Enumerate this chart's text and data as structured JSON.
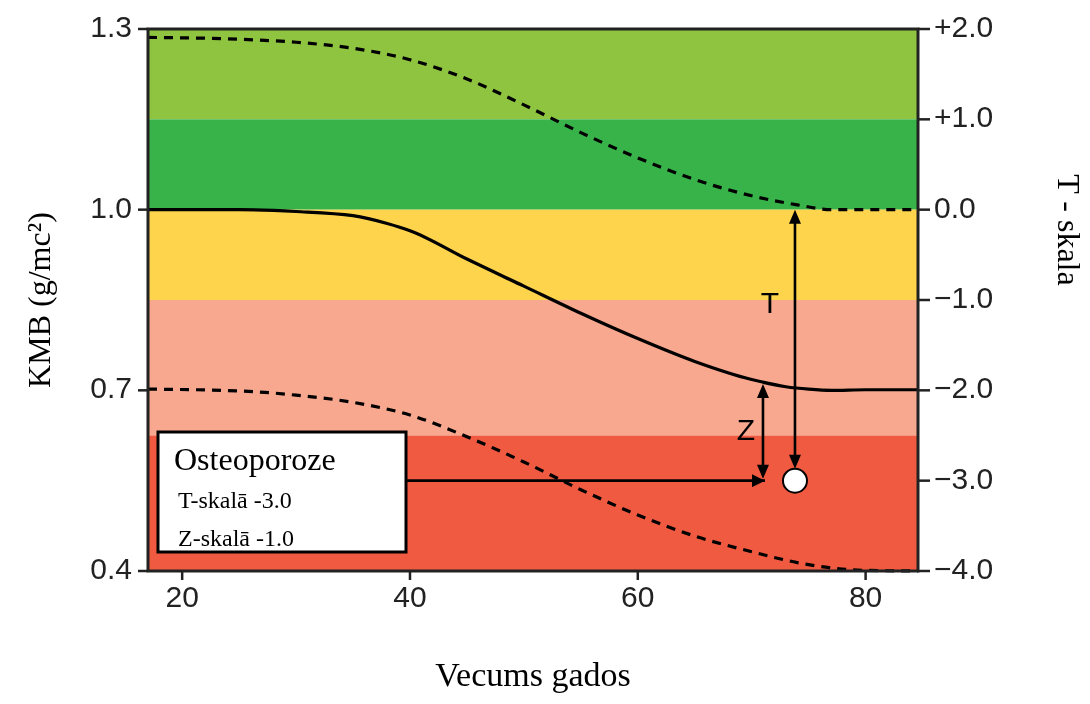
{
  "chart_data": {
    "type": "line",
    "xlabel": "Vecums gados",
    "ylabel": "KMB (g/mc²)",
    "y2label": "T - skala",
    "xlim": [
      17,
      84.6
    ],
    "xticks": [
      20,
      40,
      60,
      80
    ],
    "ylim": [
      0.4,
      1.3
    ],
    "yticks": [
      {
        "value": 1.3,
        "label": "1.3"
      },
      {
        "value": 1.0,
        "label": "1.0"
      },
      {
        "value": 0.7,
        "label": "0.7"
      },
      {
        "value": 0.4,
        "label": "0.4"
      }
    ],
    "y2lim": [
      -4,
      2
    ],
    "y2ticks": [
      {
        "value": 2,
        "label": "+2.0"
      },
      {
        "value": 1,
        "label": "+1.0"
      },
      {
        "value": 0,
        "label": "0.0"
      },
      {
        "value": -1,
        "label": "−1.0"
      },
      {
        "value": -2,
        "label": "−2.0"
      },
      {
        "value": -3,
        "label": "−3.0"
      },
      {
        "value": -4,
        "label": "−4.0"
      }
    ],
    "bands": [
      {
        "axis": "y2",
        "from": 1,
        "to": 2,
        "color": "#8fc440"
      },
      {
        "axis": "y2",
        "from": 0,
        "to": 1,
        "color": "#38b34a"
      },
      {
        "axis": "y2",
        "from": -1,
        "to": 0,
        "color": "#fdd44c"
      },
      {
        "axis": "y2",
        "from": -2.5,
        "to": -1,
        "color": "#f7a88e"
      },
      {
        "axis": "y2",
        "from": -4,
        "to": -2.5,
        "color": "#ef5a40"
      }
    ],
    "series": [
      {
        "color": "#000000",
        "line_style": "dashed",
        "marker": "none",
        "x": [
          17,
          25,
          30,
          35,
          40,
          45,
          50,
          55,
          60,
          65,
          70,
          74,
          77,
          80,
          84.6
        ],
        "values": [
          1.286,
          1.283,
          1.278,
          1.268,
          1.249,
          1.217,
          1.174,
          1.128,
          1.086,
          1.05,
          1.023,
          1.008,
          1.0,
          1.0,
          1.0
        ]
      },
      {
        "color": "#000000",
        "line_style": "solid",
        "marker": "none",
        "x": [
          17,
          25,
          30,
          35,
          38,
          40,
          45,
          50,
          55,
          60,
          65,
          70,
          73,
          75,
          77,
          80,
          84.6
        ],
        "values": [
          1.0,
          1.0,
          0.997,
          0.99,
          0.977,
          0.965,
          0.918,
          0.873,
          0.828,
          0.786,
          0.748,
          0.718,
          0.706,
          0.702,
          0.7,
          0.701,
          0.701
        ]
      },
      {
        "color": "#000000",
        "line_style": "dashed",
        "marker": "none",
        "x": [
          17,
          25,
          30,
          35,
          40,
          45,
          50,
          55,
          60,
          65,
          70,
          74,
          77,
          80,
          84.6
        ],
        "values": [
          0.702,
          0.699,
          0.692,
          0.68,
          0.659,
          0.623,
          0.581,
          0.535,
          0.493,
          0.458,
          0.432,
          0.414,
          0.405,
          0.401,
          0.4
        ]
      },
      {
        "type": "scatter",
        "color": "#ffffff",
        "marker": "circle",
        "x": [
          73.8
        ],
        "values": [
          0.55
        ]
      }
    ],
    "annotations": [
      "T",
      "Z",
      "Osteoporoze",
      "T-skalā -3.0",
      "Z-skalā -1.0"
    ],
    "grid": false
  }
}
